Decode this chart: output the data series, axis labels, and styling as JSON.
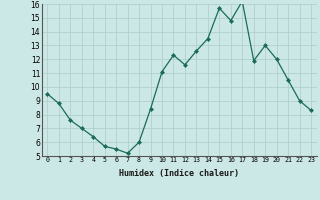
{
  "x": [
    0,
    1,
    2,
    3,
    4,
    5,
    6,
    7,
    8,
    9,
    10,
    11,
    12,
    13,
    14,
    15,
    16,
    17,
    18,
    19,
    20,
    21,
    22,
    23
  ],
  "y": [
    9.5,
    8.8,
    7.6,
    7.0,
    6.4,
    5.7,
    5.5,
    5.2,
    6.0,
    8.4,
    11.1,
    12.3,
    11.6,
    12.6,
    13.5,
    15.7,
    14.8,
    16.2,
    11.9,
    13.0,
    12.0,
    10.5,
    9.0,
    8.3
  ],
  "line_color": "#1a6b5a",
  "marker": "D",
  "marker_size": 2.0,
  "bg_color": "#cce8e6",
  "grid_color": "#b0d0ce",
  "xlabel": "Humidex (Indice chaleur)",
  "ylim": [
    5,
    16
  ],
  "xlim": [
    -0.5,
    23.5
  ],
  "yticks": [
    5,
    6,
    7,
    8,
    9,
    10,
    11,
    12,
    13,
    14,
    15,
    16
  ],
  "xticks": [
    0,
    1,
    2,
    3,
    4,
    5,
    6,
    7,
    8,
    9,
    10,
    11,
    12,
    13,
    14,
    15,
    16,
    17,
    18,
    19,
    20,
    21,
    22,
    23
  ],
  "xtick_labels": [
    "0",
    "1",
    "2",
    "3",
    "4",
    "5",
    "6",
    "7",
    "8",
    "9",
    "10",
    "11",
    "12",
    "13",
    "14",
    "15",
    "16",
    "17",
    "18",
    "19",
    "20",
    "21",
    "22",
    "23"
  ],
  "xlabel_fontsize": 6.0,
  "ytick_fontsize": 5.5,
  "xtick_fontsize": 4.8
}
